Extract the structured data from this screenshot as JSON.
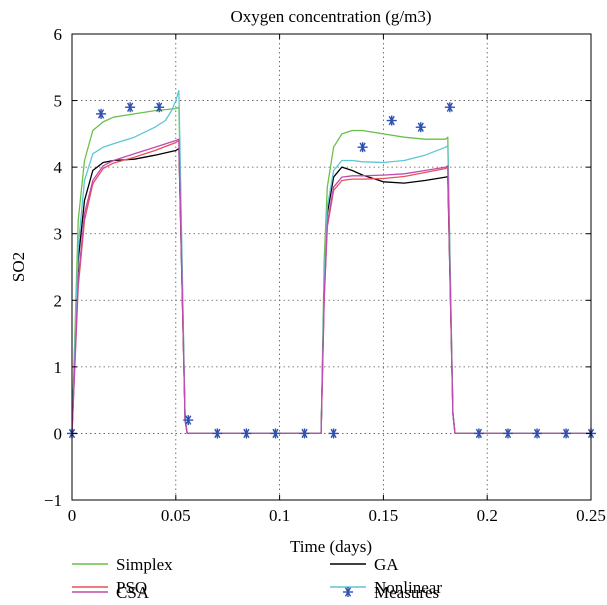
{
  "chart_data": {
    "type": "line",
    "title": "Oxygen concentration (g/m3)",
    "xlabel": "Time (days)",
    "ylabel": "SO2",
    "xlim": [
      0,
      0.25
    ],
    "ylim": [
      -1,
      6
    ],
    "xticks": [
      "0",
      "0.05",
      "0.1",
      "0.15",
      "0.2",
      "0.25"
    ],
    "yticks": [
      "−1",
      "0",
      "1",
      "2",
      "3",
      "4",
      "5",
      "6"
    ],
    "xtick_values": [
      0,
      0.05,
      0.1,
      0.15,
      0.2,
      0.25
    ],
    "ytick_values": [
      -1,
      0,
      1,
      2,
      3,
      4,
      5,
      6
    ],
    "grid": true,
    "legend_position": "below",
    "series": [
      {
        "name": "Simplex",
        "color": "#6ac04a",
        "x": [
          0,
          0.003,
          0.006,
          0.01,
          0.015,
          0.02,
          0.03,
          0.04,
          0.05,
          0.0515,
          0.0545,
          0.0555,
          0.12,
          0.1215,
          0.123,
          0.126,
          0.13,
          0.135,
          0.14,
          0.15,
          0.16,
          0.17,
          0.18,
          0.181,
          0.1835,
          0.1845,
          0.25
        ],
        "y": [
          0,
          3.2,
          4.1,
          4.55,
          4.68,
          4.75,
          4.8,
          4.85,
          4.88,
          4.9,
          0.2,
          0,
          0,
          2.6,
          3.7,
          4.3,
          4.5,
          4.55,
          4.55,
          4.5,
          4.45,
          4.42,
          4.42,
          4.45,
          0.3,
          0,
          0
        ]
      },
      {
        "name": "GA",
        "color": "#000000",
        "x": [
          0,
          0.003,
          0.006,
          0.01,
          0.015,
          0.02,
          0.03,
          0.04,
          0.05,
          0.0515,
          0.0545,
          0.0555,
          0.12,
          0.1215,
          0.123,
          0.126,
          0.13,
          0.135,
          0.14,
          0.15,
          0.16,
          0.17,
          0.18,
          0.181,
          0.1835,
          0.1845,
          0.25
        ],
        "y": [
          0,
          2.6,
          3.5,
          3.95,
          4.07,
          4.1,
          4.12,
          4.18,
          4.25,
          4.28,
          0.2,
          0,
          0,
          2.2,
          3.3,
          3.85,
          4.0,
          3.95,
          3.88,
          3.78,
          3.76,
          3.8,
          3.85,
          3.86,
          0.3,
          0,
          0
        ]
      },
      {
        "name": "PSO",
        "color": "#e8505a",
        "x": [
          0,
          0.003,
          0.006,
          0.01,
          0.015,
          0.02,
          0.03,
          0.04,
          0.05,
          0.0515,
          0.0545,
          0.0555,
          0.12,
          0.1215,
          0.123,
          0.126,
          0.13,
          0.135,
          0.14,
          0.15,
          0.16,
          0.17,
          0.18,
          0.181,
          0.1835,
          0.1845,
          0.25
        ],
        "y": [
          0,
          2.2,
          3.2,
          3.75,
          3.98,
          4.06,
          4.15,
          4.25,
          4.37,
          4.4,
          0.2,
          0,
          0,
          2.0,
          3.1,
          3.65,
          3.8,
          3.82,
          3.82,
          3.83,
          3.86,
          3.92,
          3.98,
          4.0,
          0.3,
          0,
          0
        ]
      },
      {
        "name": "Nonlinear",
        "color": "#5ec6d4",
        "x": [
          0,
          0.003,
          0.006,
          0.01,
          0.015,
          0.02,
          0.03,
          0.04,
          0.045,
          0.048,
          0.05,
          0.0515,
          0.0545,
          0.0555,
          0.12,
          0.1215,
          0.123,
          0.126,
          0.13,
          0.135,
          0.14,
          0.15,
          0.16,
          0.17,
          0.18,
          0.181,
          0.1835,
          0.1845,
          0.25
        ],
        "y": [
          0,
          2.8,
          3.8,
          4.2,
          4.3,
          4.35,
          4.45,
          4.6,
          4.7,
          4.85,
          5.0,
          5.15,
          0.2,
          0,
          0,
          2.3,
          3.4,
          3.95,
          4.1,
          4.1,
          4.08,
          4.07,
          4.1,
          4.18,
          4.3,
          4.32,
          0.3,
          0,
          0
        ]
      },
      {
        "name": "CSA",
        "color": "#c04ab0",
        "x": [
          0,
          0.003,
          0.006,
          0.01,
          0.015,
          0.02,
          0.03,
          0.04,
          0.05,
          0.0515,
          0.0545,
          0.0555,
          0.12,
          0.1215,
          0.123,
          0.126,
          0.13,
          0.135,
          0.14,
          0.15,
          0.16,
          0.17,
          0.18,
          0.181,
          0.1835,
          0.1845,
          0.25
        ],
        "y": [
          0,
          2.3,
          3.3,
          3.8,
          4.02,
          4.1,
          4.2,
          4.3,
          4.4,
          4.42,
          0.2,
          0,
          0,
          2.05,
          3.15,
          3.7,
          3.85,
          3.87,
          3.87,
          3.88,
          3.9,
          3.95,
          4.0,
          4.02,
          0.3,
          0,
          0
        ]
      },
      {
        "name": "Measures",
        "color": "#2d4fb0",
        "marker": "asterisk",
        "x": [
          0,
          0.014,
          0.028,
          0.042,
          0.056,
          0.07,
          0.084,
          0.098,
          0.112,
          0.126,
          0.14,
          0.154,
          0.168,
          0.182,
          0.196,
          0.21,
          0.224,
          0.238,
          0.252
        ],
        "y": [
          0,
          4.8,
          4.9,
          4.9,
          0.2,
          0,
          0,
          0,
          0,
          0,
          4.3,
          4.7,
          4.6,
          4.9,
          0,
          0,
          0,
          0,
          0
        ]
      }
    ],
    "legend": [
      {
        "name": "Simplex",
        "color": "#6ac04a",
        "marker": "line"
      },
      {
        "name": "GA",
        "color": "#000000",
        "marker": "line"
      },
      {
        "name": "PSO",
        "color": "#e8505a",
        "marker": "line"
      },
      {
        "name": "Nonlinear",
        "color": "#5ec6d4",
        "marker": "line"
      },
      {
        "name": "CSA",
        "color": "#c04ab0",
        "marker": "line"
      },
      {
        "name": "Measures",
        "color": "#2d4fb0",
        "marker": "asterisk"
      }
    ]
  }
}
